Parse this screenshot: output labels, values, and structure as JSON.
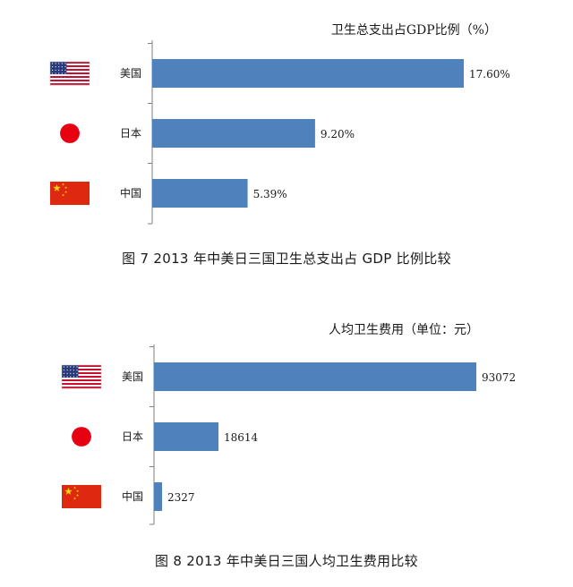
{
  "chart_data": [
    {
      "type": "bar",
      "orientation": "horizontal",
      "title": "卫生总支出占GDP比例（%）",
      "categories": [
        "美国",
        "日本",
        "中国"
      ],
      "values": [
        17.6,
        9.2,
        5.39
      ],
      "value_labels": [
        "17.60%",
        "9.20%",
        "5.39%"
      ],
      "icons": [
        "us-flag-icon",
        "japan-flag-icon",
        "china-flag-icon"
      ],
      "bar_color": "#4f81bd",
      "grid": false,
      "caption": "图 7   2013 年中美日三国卫生总支出占 GDP 比例比较"
    },
    {
      "type": "bar",
      "orientation": "horizontal",
      "title": "人均卫生费用（单位：元）",
      "categories": [
        "美国",
        "日本",
        "中国"
      ],
      "values": [
        93072,
        18614,
        2327
      ],
      "value_labels": [
        "93072",
        "18614",
        "2327"
      ],
      "icons": [
        "us-flag-icon",
        "japan-flag-icon",
        "china-flag-icon"
      ],
      "bar_color": "#4f81bd",
      "grid": false,
      "caption": "图 8   2013 年中美日三国人均卫生费用比较"
    }
  ]
}
